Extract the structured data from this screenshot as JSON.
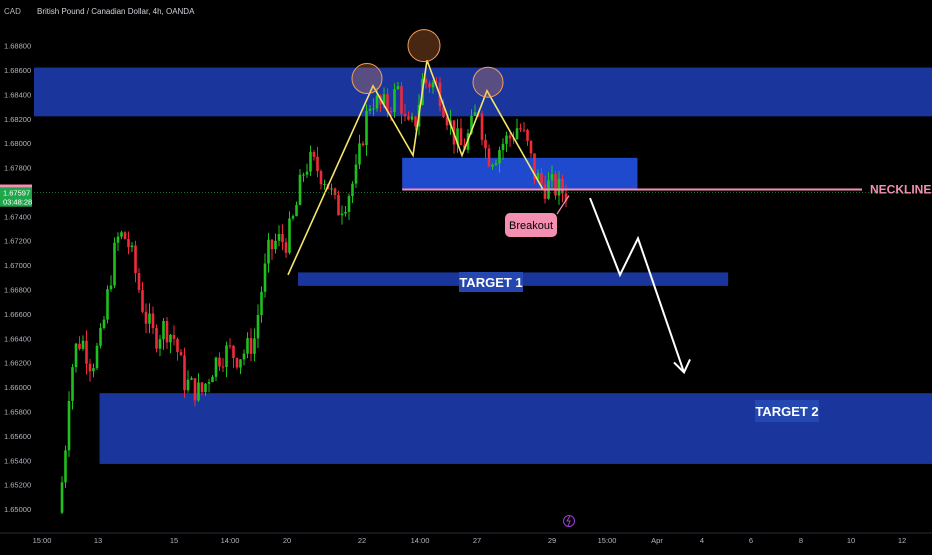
{
  "header": {
    "currency": "CAD",
    "title": "British Pound / Canadian Dollar, 4h, OANDA"
  },
  "colors": {
    "background": "#000000",
    "zone": "#1e3fb8",
    "zone_bright": "#2350e0",
    "up": "#1fc11f",
    "down": "#ef2a3a",
    "pattern_line": "#f5e66b",
    "neckline": "#f48fb1",
    "arrow": "#ffffff",
    "axis_text": "#b2b5be",
    "label_box": "#2448b0"
  },
  "chart_data": {
    "type": "candlestick",
    "symbol": "British Pound / Canadian Dollar",
    "timeframe": "4h",
    "exchange": "OANDA",
    "price_range": [
      1.6482,
      1.6901
    ],
    "price_ticks": [
      1.688,
      1.686,
      1.684,
      1.682,
      1.68,
      1.678,
      1.674,
      1.672,
      1.67,
      1.668,
      1.666,
      1.664,
      1.662,
      1.66,
      1.658,
      1.656,
      1.654,
      1.652,
      1.65
    ],
    "price_ticks_labels": [
      "1.68800",
      "1.68600",
      "1.68400",
      "1.68200",
      "1.68000",
      "1.67800",
      "1.67400",
      "1.67200",
      "1.67000",
      "1.66800",
      "1.66600",
      "1.66400",
      "1.66200",
      "1.66000",
      "1.65800",
      "1.65600",
      "1.65400",
      "1.65200",
      "1.65000"
    ],
    "time_labels": [
      "15:00",
      "13",
      "15",
      "14:00",
      "20",
      "22",
      "14:00",
      "27",
      "29",
      "15:00",
      "Apr",
      "4",
      "6",
      "8",
      "10",
      "12"
    ],
    "price_labels": [
      {
        "text": "1.67620",
        "value": 1.6762,
        "bg": "#f48fb1",
        "fg": "#000000"
      },
      {
        "text": "1.67597",
        "value": 1.67597,
        "bg": "#1fa64a",
        "fg": "#ffffff"
      },
      {
        "text": "03:48:28",
        "value": 1.6752,
        "bg": "#1fa64a",
        "fg": "#ffffff"
      }
    ],
    "zones": [
      {
        "name": "Resistance",
        "y1": 1.6862,
        "y2": 1.6822,
        "start": 0,
        "end": 1
      },
      {
        "name": "Neckline box",
        "y1": 1.6788,
        "y2": 1.6762,
        "start": 0.41,
        "end": 0.672
      },
      {
        "name": "TARGET 1",
        "y1": 1.6694,
        "y2": 1.6683,
        "start": 0.294,
        "end": 0.773
      },
      {
        "name": "TARGET 2",
        "y1": 1.6595,
        "y2": 1.6537,
        "start": 0.073,
        "end": 1
      }
    ],
    "annotations": [
      "NECKLINE",
      "Breakout",
      "TARGET 1",
      "TARGET 2"
    ],
    "neckline": 1.6762,
    "pattern": "head and shoulders",
    "pattern_points": [
      [
        288,
        1.6692
      ],
      [
        373,
        1.6847
      ],
      [
        413,
        1.679
      ],
      [
        427,
        1.6868
      ],
      [
        462,
        1.679
      ],
      [
        487,
        1.6843
      ],
      [
        543,
        1.6762
      ]
    ],
    "projection_points": [
      [
        590,
        1.6755
      ],
      [
        620,
        1.6692
      ],
      [
        638,
        1.6722
      ],
      [
        684,
        1.6612
      ]
    ],
    "candles": []
  }
}
